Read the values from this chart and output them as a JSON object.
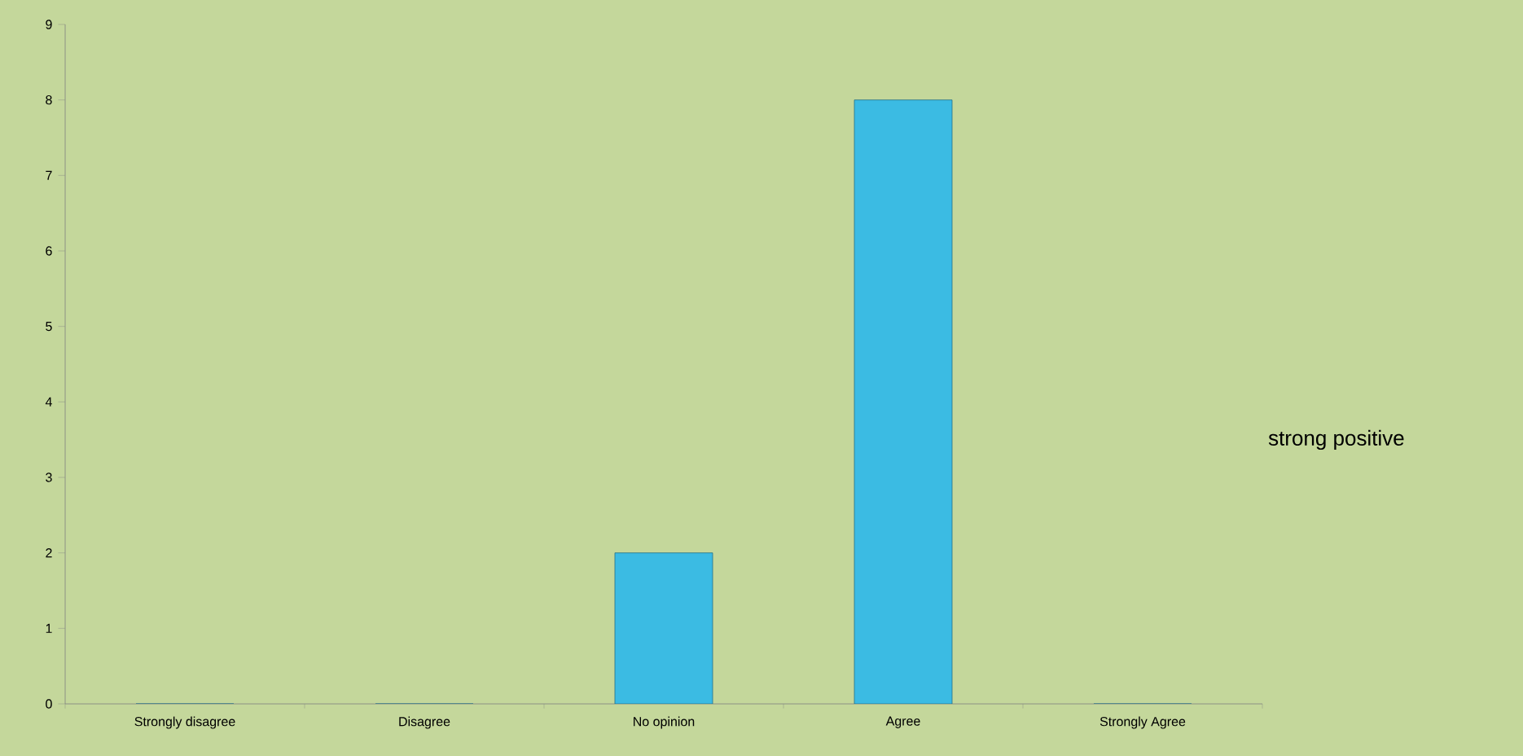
{
  "chart_data": {
    "type": "bar",
    "categories": [
      "Strongly disagree",
      "Disagree",
      "No opinion",
      "Agree",
      "Strongly Agree"
    ],
    "values": [
      0,
      0,
      2,
      8,
      0
    ],
    "color": "#3bbbe3",
    "ylim": [
      0,
      9
    ],
    "yticks": [
      0,
      1,
      2,
      3,
      4,
      5,
      6,
      7,
      8,
      9
    ],
    "grid": false,
    "annotations": [
      "strong positive"
    ]
  }
}
